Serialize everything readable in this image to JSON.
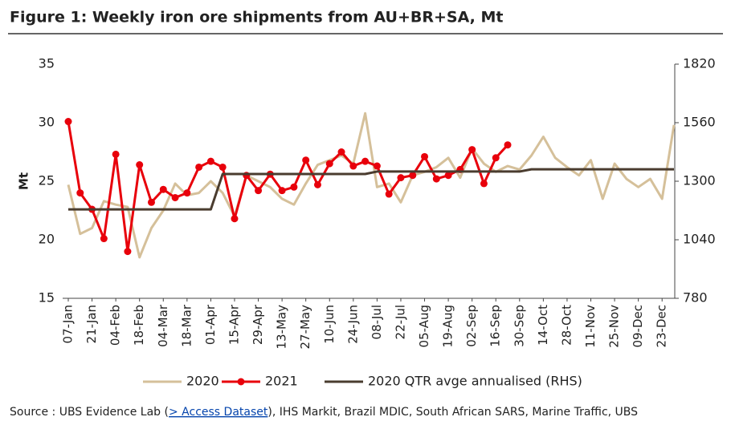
{
  "chart_data": {
    "type": "line",
    "title": "Figure 1: Weekly iron ore shipments from AU+BR+SA, Mt",
    "y_label": "Mt",
    "source": "Source : UBS Evidence Lab (",
    "source_link": "> Access Dataset",
    "source_rest": "), IHS Markit, Brazil MDIC, South African SARS, Marine Traffic, UBS",
    "categories": [
      "07-Jan",
      null,
      "21-Jan",
      null,
      "04-Feb",
      null,
      "18-Feb",
      null,
      "04-Mar",
      null,
      "18-Mar",
      null,
      "01-Apr",
      null,
      "15-Apr",
      null,
      "29-Apr",
      null,
      "13-May",
      null,
      "27-May",
      null,
      "10-Jun",
      null,
      "24-Jun",
      null,
      "08-Jul",
      null,
      "22-Jul",
      null,
      "05-Aug",
      null,
      "19-Aug",
      null,
      "02-Sep",
      null,
      "16-Sep",
      null,
      "30-Sep",
      null,
      "14-Oct",
      null,
      "28-Oct",
      null,
      "11-Nov",
      null,
      "25-Nov",
      null,
      "09-Dec",
      null,
      "23-Dec",
      null
    ],
    "series": [
      {
        "name": "2020",
        "color": "#d5c09a",
        "values": [
          24.7,
          20.5,
          21.0,
          23.3,
          23.0,
          22.8,
          18.5,
          21.0,
          22.5,
          24.8,
          23.8,
          24.0,
          25.0,
          24.0,
          22.0,
          25.5,
          25.0,
          24.5,
          23.5,
          23.0,
          24.8,
          26.4,
          26.8,
          27.2,
          26.5,
          30.8,
          24.5,
          24.8,
          23.2,
          25.5,
          25.8,
          26.2,
          27.0,
          25.3,
          27.8,
          26.5,
          25.8,
          26.3,
          26.0,
          27.2,
          28.8,
          27.0,
          26.2,
          25.5,
          26.8,
          23.5,
          26.5,
          25.2,
          24.5,
          25.2,
          23.5,
          29.8
        ]
      },
      {
        "name": "2021",
        "color": "#e8000b",
        "marker": true,
        "values": [
          30.1,
          24.0,
          22.6,
          20.1,
          27.3,
          19.0,
          26.4,
          23.2,
          24.3,
          23.6,
          24.0,
          26.2,
          26.7,
          26.2,
          21.8,
          25.5,
          24.2,
          25.6,
          24.2,
          24.5,
          26.8,
          24.7,
          26.5,
          27.5,
          26.3,
          26.7,
          26.3,
          23.9,
          25.3,
          25.5,
          27.1,
          25.2,
          25.5,
          26.0,
          27.7,
          24.8,
          27.0,
          28.1,
          null,
          null,
          null,
          null,
          null,
          null,
          null,
          null,
          null,
          null,
          null,
          null,
          null,
          null
        ]
      },
      {
        "name": "2020 QTR avge annualised (RHS)",
        "color": "#4a3c2f",
        "axis": "y2",
        "values": [
          1175,
          1175,
          1175,
          1175,
          1175,
          1175,
          1175,
          1175,
          1175,
          1175,
          1175,
          1175,
          1175,
          1332,
          1332,
          1332,
          1332,
          1332,
          1332,
          1332,
          1332,
          1332,
          1332,
          1332,
          1332,
          1332,
          1343,
          1343,
          1343,
          1343,
          1343,
          1343,
          1343,
          1343,
          1343,
          1343,
          1343,
          1343,
          1343,
          1353,
          1353,
          1353,
          1353,
          1353,
          1353,
          1353,
          1353,
          1353,
          1353,
          1353,
          1353,
          1353
        ]
      }
    ],
    "ylim": [
      15,
      35
    ],
    "yticks": [
      15,
      20,
      25,
      30,
      35
    ],
    "y2lim": [
      780,
      1820
    ],
    "y2ticks": [
      780,
      1040,
      1300,
      1560,
      1820
    ]
  }
}
